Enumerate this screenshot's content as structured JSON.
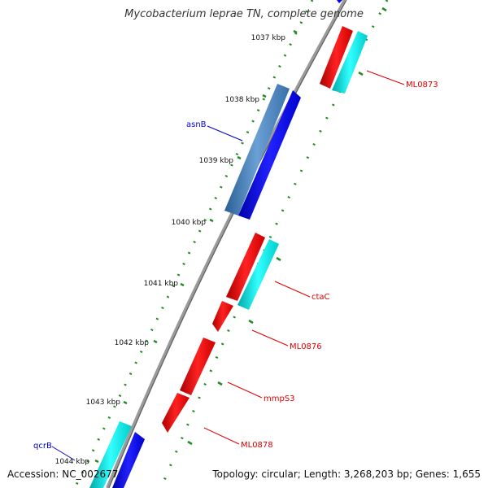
{
  "title": "Mycobacterium leprae TN, complete genome",
  "kbp_ticks": [
    "1037 kbp",
    "1038 kbp",
    "1039 kbp",
    "1040 kbp",
    "1041 kbp",
    "1042 kbp",
    "1043 kbp",
    "1044 kbp"
  ],
  "gene_labels": [
    {
      "id": "ML0873",
      "text": "ML0873",
      "color": "#dd0000"
    },
    {
      "id": "asnB",
      "text": "asnB",
      "color": "#0000cc"
    },
    {
      "id": "ctaC",
      "text": "ctaC",
      "color": "#dd0000"
    },
    {
      "id": "ML0876",
      "text": "ML0876",
      "color": "#dd0000"
    },
    {
      "id": "mmpS3",
      "text": "mmpS3",
      "color": "#dd0000"
    },
    {
      "id": "ML0878",
      "text": "ML0878",
      "color": "#dd0000"
    },
    {
      "id": "qcrB",
      "text": "qcrB",
      "color": "#0000cc"
    }
  ],
  "colors": {
    "forward_cds": "#ff0000",
    "forward_gene": "#00e5ee",
    "reverse_cds": "#0000ee",
    "reverse_gene": "#3d7fbf",
    "backbone": "#808080",
    "tick_dots": "#228b22"
  },
  "footer": {
    "accession": "Accession: NC_002677",
    "stats": "Topology: circular; Length: 3,268,203 bp; Genes: 1,655"
  }
}
